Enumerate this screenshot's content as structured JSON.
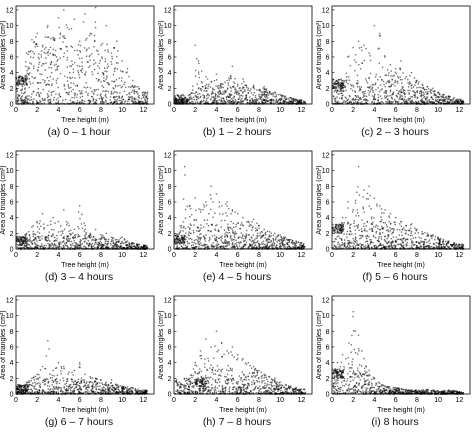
{
  "figure": {
    "xlabel": "Tree height (m)",
    "ylabel": "Area of triangles (cm²)"
  },
  "chart_data": [
    {
      "type": "scatter",
      "caption": "(a) 0 – 1 hour",
      "xlabel": "Tree height (m)",
      "ylabel": "Area of triangles (cm²)",
      "xlim": [
        0,
        13
      ],
      "ylim": [
        0,
        12.5
      ],
      "xticks": [
        0,
        2,
        4,
        6,
        8,
        10,
        12
      ],
      "yticks": [
        0,
        2,
        4,
        6,
        8,
        10,
        12
      ],
      "sample_points": [
        [
          0.2,
          2.5
        ],
        [
          0.5,
          3.2
        ],
        [
          0.7,
          3.0
        ],
        [
          1.0,
          6.5
        ],
        [
          1.5,
          8.2
        ],
        [
          2.0,
          9.0
        ],
        [
          2.5,
          7.5
        ],
        [
          3.0,
          10.0
        ],
        [
          3.5,
          8.5
        ],
        [
          4.0,
          11.0
        ],
        [
          4.5,
          12.0
        ],
        [
          5.0,
          9.5
        ],
        [
          5.5,
          10.8
        ],
        [
          6.0,
          8.0
        ],
        [
          6.5,
          11.5
        ],
        [
          7.0,
          9.0
        ],
        [
          7.5,
          12.3
        ],
        [
          8.0,
          7.5
        ],
        [
          8.5,
          10.0
        ],
        [
          9.0,
          6.5
        ],
        [
          9.5,
          8.0
        ],
        [
          10.0,
          5.5
        ],
        [
          10.5,
          4.5
        ],
        [
          11.0,
          3.0
        ],
        [
          11.5,
          2.2
        ],
        [
          12.0,
          1.5
        ]
      ],
      "density_peak": [
        2,
        5.5
      ],
      "cluster_low": [
        0,
        3.0
      ]
    },
    {
      "type": "scatter",
      "caption": "(b) 1 – 2 hours",
      "xlabel": "Tree height (m)",
      "ylabel": "Area of triangles (cm²)",
      "xlim": [
        0,
        13
      ],
      "ylim": [
        0,
        12.5
      ],
      "xticks": [
        0,
        2,
        4,
        6,
        8,
        10,
        12
      ],
      "yticks": [
        0,
        2,
        4,
        6,
        8,
        10,
        12
      ],
      "sample_points": [
        [
          0.5,
          0.6
        ],
        [
          1.5,
          1.2
        ],
        [
          2.0,
          7.5
        ],
        [
          2.3,
          5.5
        ],
        [
          2.6,
          4.2
        ],
        [
          3.0,
          3.5
        ],
        [
          3.5,
          2.8
        ],
        [
          4.0,
          3.8
        ],
        [
          4.5,
          2.6
        ],
        [
          5.0,
          3.0
        ],
        [
          5.5,
          4.8
        ],
        [
          6.0,
          2.5
        ],
        [
          6.5,
          3.2
        ],
        [
          7.0,
          2.0
        ],
        [
          7.5,
          2.4
        ],
        [
          8.0,
          1.8
        ],
        [
          8.5,
          2.2
        ],
        [
          9.0,
          1.6
        ],
        [
          9.5,
          1.5
        ],
        [
          10.0,
          1.2
        ],
        [
          10.5,
          1.0
        ],
        [
          11.0,
          0.8
        ],
        [
          11.5,
          0.6
        ],
        [
          12.0,
          0.5
        ]
      ],
      "density_peak": [
        3,
        1.5
      ],
      "cluster_low": [
        0,
        0.6
      ]
    },
    {
      "type": "scatter",
      "caption": "(c) 2 – 3 hours",
      "xlabel": "Tree height (m)",
      "ylabel": "Area of triangles (cm²)",
      "xlim": [
        0,
        13
      ],
      "ylim": [
        0,
        12.5
      ],
      "xticks": [
        0,
        2,
        4,
        6,
        8,
        10,
        12
      ],
      "yticks": [
        0,
        2,
        4,
        6,
        8,
        10,
        12
      ],
      "sample_points": [
        [
          0.3,
          2.5
        ],
        [
          0.6,
          2.8
        ],
        [
          1.0,
          3.0
        ],
        [
          1.5,
          6.0
        ],
        [
          2.0,
          7.2
        ],
        [
          2.5,
          8.0
        ],
        [
          3.0,
          7.5
        ],
        [
          3.5,
          6.5
        ],
        [
          4.0,
          10.0
        ],
        [
          4.5,
          9.0
        ],
        [
          5.0,
          6.0
        ],
        [
          5.5,
          5.0
        ],
        [
          6.0,
          4.5
        ],
        [
          6.5,
          5.5
        ],
        [
          7.0,
          3.5
        ],
        [
          7.5,
          4.0
        ],
        [
          8.0,
          3.0
        ],
        [
          8.5,
          2.5
        ],
        [
          9.0,
          2.2
        ],
        [
          9.5,
          2.0
        ],
        [
          10.0,
          1.5
        ],
        [
          10.5,
          1.2
        ],
        [
          11.0,
          1.0
        ],
        [
          11.5,
          0.8
        ],
        [
          12.0,
          0.6
        ]
      ],
      "density_peak": [
        3,
        2.5
      ],
      "cluster_low": [
        0,
        2.6
      ]
    },
    {
      "type": "scatter",
      "caption": "(d) 3 – 4 hours",
      "xlabel": "Tree height (m)",
      "ylabel": "Area of triangles (cm²)",
      "xlim": [
        0,
        13
      ],
      "ylim": [
        0,
        12.5
      ],
      "xticks": [
        0,
        2,
        4,
        6,
        8,
        10,
        12
      ],
      "yticks": [
        0,
        2,
        4,
        6,
        8,
        10,
        12
      ],
      "sample_points": [
        [
          0.5,
          1.5
        ],
        [
          1.0,
          2.0
        ],
        [
          1.5,
          2.8
        ],
        [
          2.0,
          3.5
        ],
        [
          2.5,
          4.5
        ],
        [
          3.0,
          3.0
        ],
        [
          3.5,
          4.0
        ],
        [
          4.0,
          3.5
        ],
        [
          4.5,
          5.0
        ],
        [
          5.0,
          3.0
        ],
        [
          5.5,
          2.5
        ],
        [
          6.0,
          5.5
        ],
        [
          6.5,
          3.0
        ],
        [
          7.0,
          2.0
        ],
        [
          7.5,
          2.5
        ],
        [
          8.0,
          1.8
        ],
        [
          8.5,
          2.0
        ],
        [
          9.0,
          1.5
        ],
        [
          9.5,
          1.2
        ],
        [
          10.0,
          1.5
        ],
        [
          10.5,
          1.0
        ],
        [
          11.0,
          0.8
        ],
        [
          11.5,
          0.6
        ],
        [
          12.0,
          0.5
        ]
      ],
      "density_peak": [
        3,
        1.2
      ],
      "cluster_low": [
        0,
        1.0
      ]
    },
    {
      "type": "scatter",
      "caption": "(e) 4 – 5 hours",
      "xlabel": "Tree height (m)",
      "ylabel": "Area of triangles (cm²)",
      "xlim": [
        0,
        13
      ],
      "ylim": [
        0,
        12.5
      ],
      "xticks": [
        0,
        2,
        4,
        6,
        8,
        10,
        12
      ],
      "yticks": [
        0,
        2,
        4,
        6,
        8,
        10,
        12
      ],
      "sample_points": [
        [
          0.5,
          2.0
        ],
        [
          1.0,
          10.5
        ],
        [
          1.5,
          5.5
        ],
        [
          2.0,
          6.5
        ],
        [
          2.5,
          5.0
        ],
        [
          3.0,
          6.0
        ],
        [
          3.5,
          8.0
        ],
        [
          4.0,
          7.0
        ],
        [
          4.5,
          5.5
        ],
        [
          5.0,
          6.0
        ],
        [
          5.5,
          5.0
        ],
        [
          6.0,
          4.5
        ],
        [
          6.5,
          4.0
        ],
        [
          7.0,
          3.5
        ],
        [
          7.5,
          3.8
        ],
        [
          8.0,
          3.0
        ],
        [
          8.5,
          2.5
        ],
        [
          9.0,
          2.2
        ],
        [
          9.5,
          2.0
        ],
        [
          10.0,
          1.8
        ],
        [
          10.5,
          1.5
        ],
        [
          11.0,
          1.2
        ],
        [
          11.5,
          1.0
        ],
        [
          12.0,
          0.8
        ]
      ],
      "density_peak": [
        4,
        2.0
      ],
      "cluster_low": [
        0,
        1.2
      ]
    },
    {
      "type": "scatter",
      "caption": "(f) 5 – 6 hours",
      "xlabel": "Tree height (m)",
      "ylabel": "Area of triangles (cm²)",
      "xlim": [
        0,
        13
      ],
      "ylim": [
        0,
        12.5
      ],
      "xticks": [
        0,
        2,
        4,
        6,
        8,
        10,
        12
      ],
      "yticks": [
        0,
        2,
        4,
        6,
        8,
        10,
        12
      ],
      "sample_points": [
        [
          0.3,
          2.8
        ],
        [
          0.6,
          3.0
        ],
        [
          1.0,
          4.0
        ],
        [
          1.5,
          6.0
        ],
        [
          2.0,
          5.0
        ],
        [
          2.5,
          10.5
        ],
        [
          3.0,
          7.5
        ],
        [
          3.5,
          8.0
        ],
        [
          4.0,
          6.5
        ],
        [
          4.5,
          5.5
        ],
        [
          5.0,
          5.0
        ],
        [
          5.5,
          4.5
        ],
        [
          6.0,
          4.0
        ],
        [
          6.5,
          3.5
        ],
        [
          7.0,
          3.0
        ],
        [
          7.5,
          3.2
        ],
        [
          8.0,
          2.5
        ],
        [
          8.5,
          2.2
        ],
        [
          9.0,
          2.0
        ],
        [
          9.5,
          1.8
        ],
        [
          10.0,
          1.5
        ],
        [
          10.5,
          1.2
        ],
        [
          11.0,
          1.0
        ],
        [
          11.5,
          0.8
        ],
        [
          12.0,
          0.6
        ]
      ],
      "density_peak": [
        4,
        2.2
      ],
      "cluster_low": [
        0,
        2.6
      ]
    },
    {
      "type": "scatter",
      "caption": "(g) 6 – 7 hours",
      "xlabel": "Tree height (m)",
      "ylabel": "Area of triangles (cm²)",
      "xlim": [
        0,
        13
      ],
      "ylim": [
        0,
        12.5
      ],
      "xticks": [
        0,
        2,
        4,
        6,
        8,
        10,
        12
      ],
      "yticks": [
        0,
        2,
        4,
        6,
        8,
        10,
        12
      ],
      "sample_points": [
        [
          0.5,
          1.0
        ],
        [
          1.0,
          1.5
        ],
        [
          1.5,
          2.0
        ],
        [
          2.0,
          2.5
        ],
        [
          2.5,
          3.5
        ],
        [
          3.0,
          6.8
        ],
        [
          3.5,
          3.0
        ],
        [
          4.0,
          4.0
        ],
        [
          4.5,
          3.5
        ],
        [
          5.0,
          2.8
        ],
        [
          5.5,
          3.0
        ],
        [
          6.0,
          4.0
        ],
        [
          6.5,
          2.5
        ],
        [
          7.0,
          2.2
        ],
        [
          7.5,
          2.0
        ],
        [
          8.0,
          1.8
        ],
        [
          8.5,
          1.5
        ],
        [
          9.0,
          1.8
        ],
        [
          9.5,
          1.2
        ],
        [
          10.0,
          1.0
        ],
        [
          10.5,
          0.9
        ],
        [
          11.0,
          0.8
        ],
        [
          11.5,
          0.6
        ],
        [
          12.0,
          0.5
        ]
      ],
      "density_peak": [
        3.5,
        1.2
      ],
      "cluster_low": [
        0,
        0.6
      ]
    },
    {
      "type": "scatter",
      "caption": "(h) 7 – 8 hours",
      "xlabel": "Tree height (m)",
      "ylabel": "Area of triangles (cm²)",
      "xlim": [
        0,
        13
      ],
      "ylim": [
        0,
        12.5
      ],
      "xticks": [
        0,
        2,
        4,
        6,
        8,
        10,
        12
      ],
      "yticks": [
        0,
        2,
        4,
        6,
        8,
        10,
        12
      ],
      "sample_points": [
        [
          1.5,
          2.0
        ],
        [
          2.0,
          4.0
        ],
        [
          2.5,
          5.5
        ],
        [
          3.0,
          7.0
        ],
        [
          3.5,
          6.0
        ],
        [
          4.0,
          8.0
        ],
        [
          4.5,
          6.5
        ],
        [
          5.0,
          5.5
        ],
        [
          5.5,
          6.0
        ],
        [
          6.0,
          5.0
        ],
        [
          6.5,
          4.5
        ],
        [
          7.0,
          4.0
        ],
        [
          7.5,
          3.5
        ],
        [
          8.0,
          3.0
        ],
        [
          8.5,
          2.5
        ],
        [
          9.0,
          2.2
        ],
        [
          9.5,
          2.0
        ],
        [
          10.0,
          1.5
        ],
        [
          10.5,
          1.2
        ],
        [
          11.0,
          1.0
        ],
        [
          11.5,
          0.8
        ],
        [
          12.0,
          0.6
        ]
      ],
      "density_peak": [
        4.5,
        2.0
      ],
      "cluster_low": [
        2,
        1.5
      ]
    },
    {
      "type": "scatter",
      "caption": "(i) 8 hours",
      "xlabel": "Tree height (m)",
      "ylabel": "Area of triangles (cm²)",
      "xlim": [
        0,
        13
      ],
      "ylim": [
        0,
        12.5
      ],
      "xticks": [
        0,
        2,
        4,
        6,
        8,
        10,
        12
      ],
      "yticks": [
        0,
        2,
        4,
        6,
        8,
        10,
        12
      ],
      "sample_points": [
        [
          0.2,
          3.0
        ],
        [
          0.5,
          4.0
        ],
        [
          0.8,
          3.5
        ],
        [
          1.0,
          5.0
        ],
        [
          1.3,
          4.5
        ],
        [
          1.6,
          6.5
        ],
        [
          2.0,
          10.5
        ],
        [
          2.2,
          8.0
        ],
        [
          2.5,
          7.5
        ],
        [
          2.8,
          5.5
        ],
        [
          3.0,
          4.5
        ],
        [
          3.5,
          3.0
        ],
        [
          4.0,
          2.0
        ],
        [
          5.0,
          1.0
        ],
        [
          6.0,
          0.8
        ],
        [
          7.0,
          0.6
        ],
        [
          8.0,
          0.5
        ],
        [
          9.0,
          0.6
        ],
        [
          10.0,
          0.4
        ],
        [
          11.0,
          0.5
        ],
        [
          12.0,
          0.3
        ]
      ],
      "density_peak": [
        1.5,
        2.5
      ],
      "cluster_low": [
        0,
        2.6
      ]
    }
  ]
}
